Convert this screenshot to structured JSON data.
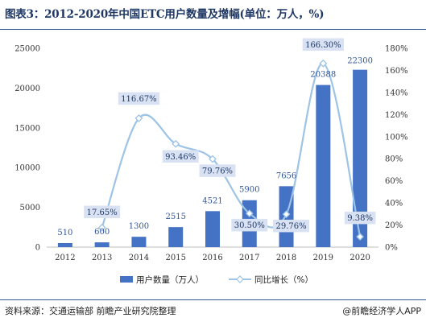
{
  "header": {
    "title": "图表3：2012-2020年中国ETC用户数量及增幅(单位：万人，%)"
  },
  "footer": {
    "source": "资料来源：交通运输部 前瞻产业研究院整理",
    "brand": "@前瞻经济学人APP"
  },
  "colors": {
    "bar": "#4472c4",
    "line": "#9dc3e6",
    "marker_fill": "#ffffff",
    "label_bg": "#d9e2f3",
    "title": "#1f3864"
  },
  "chart_data": {
    "type": "bar",
    "categories": [
      "2012",
      "2013",
      "2014",
      "2015",
      "2016",
      "2017",
      "2018",
      "2019",
      "2020"
    ],
    "series": [
      {
        "name": "用户数量（万人）",
        "type": "bar",
        "axis": "left",
        "values": [
          510,
          600,
          1300,
          2515,
          4521,
          5900,
          7656,
          20388,
          22300
        ],
        "labels": [
          "510",
          "600",
          "1300",
          "2515",
          "4521",
          "5900",
          "7656",
          "20388",
          "22300"
        ]
      },
      {
        "name": "同比增长（%）",
        "type": "line",
        "axis": "right",
        "values": [
          null,
          17.65,
          116.67,
          93.46,
          79.76,
          30.5,
          29.76,
          166.3,
          9.38
        ],
        "labels": [
          "",
          "17.65%",
          "116.67%",
          "93.46%",
          "79.76%",
          "30.50%",
          "29.76%",
          "166.30%",
          "9.38%"
        ]
      }
    ],
    "ylim_left": [
      0,
      25000
    ],
    "yticks_left": [
      "0",
      "5000",
      "10000",
      "15000",
      "20000",
      "25000"
    ],
    "ylim_right": [
      0,
      180
    ],
    "yticks_right": [
      "0%",
      "20%",
      "40%",
      "60%",
      "80%",
      "100%",
      "120%",
      "140%",
      "160%",
      "180%"
    ],
    "grid": false,
    "legend_position": "bottom"
  }
}
